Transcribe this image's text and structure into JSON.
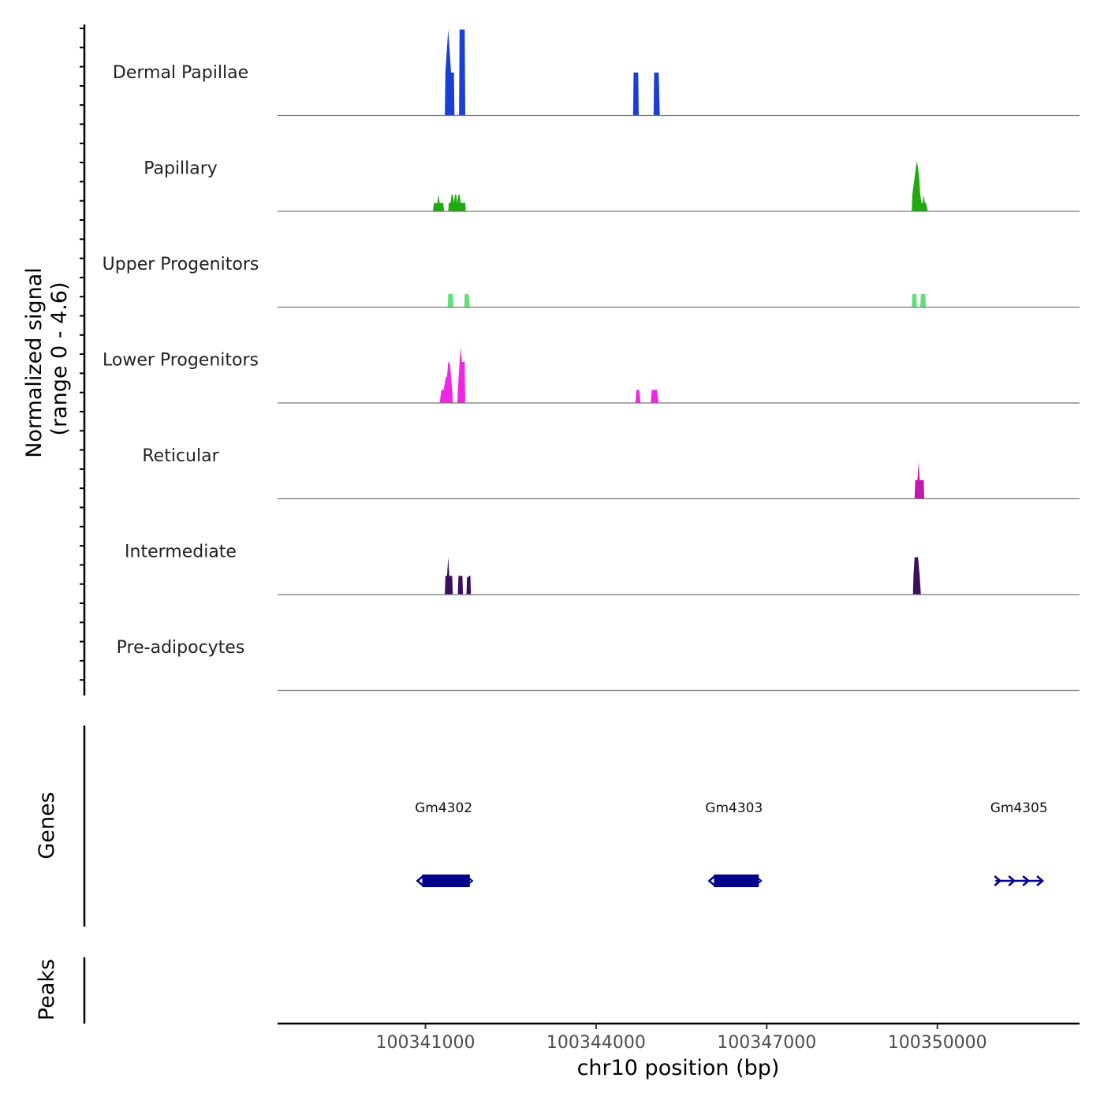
{
  "chart_data": {
    "type": "area",
    "title": "",
    "chromosome": "chr10",
    "xlabel": "chr10 position (bp)",
    "ylabel": "Normalized signal",
    "ylabel_range": "(range 0 - 4.6)",
    "signal_range": [
      0,
      4.6
    ],
    "xlim": [
      100338400,
      100352500
    ],
    "x_ticks": [
      100341000,
      100344000,
      100347000,
      100350000
    ],
    "x_tick_labels": [
      "100341000",
      "100344000",
      "100347000",
      "100350000"
    ],
    "tracks": [
      {
        "name": "Dermal Papillae",
        "color": "#1a3fd6",
        "peaks": [
          {
            "x": [
              100341340,
              100341350,
              100341400,
              100341450,
              100341500,
              100341510
            ],
            "y": [
              0,
              2.3,
              4.6,
              2.3,
              2.3,
              0
            ]
          },
          {
            "x": [
              100341590,
              100341600,
              100341690,
              100341700
            ],
            "y": [
              0,
              4.6,
              4.6,
              0
            ]
          },
          {
            "x": [
              100344650,
              100344660,
              100344740,
              100344750
            ],
            "y": [
              0,
              2.3,
              2.3,
              0
            ]
          },
          {
            "x": [
              100345010,
              100345020,
              100345100,
              100345120
            ],
            "y": [
              0,
              2.3,
              2.3,
              0
            ]
          }
        ]
      },
      {
        "name": "Papillary",
        "color": "#1fab10",
        "peaks": [
          {
            "x": [
              100341130,
              100341150,
              100341210,
              100341230,
              100341250,
              100341310,
              100341330
            ],
            "y": [
              0,
              0.45,
              0.45,
              0.9,
              0.45,
              0.45,
              0
            ]
          },
          {
            "x": [
              100341400,
              100341410,
              100341440,
              100341460,
              100341480,
              100341500,
              100341520,
              100341540,
              100341560,
              100341580,
              100341600,
              100341620,
              100341650,
              100341700,
              100341710
            ],
            "y": [
              0,
              0.45,
              0.45,
              0.9,
              0.9,
              0.45,
              0.9,
              0.9,
              0.45,
              0.9,
              0.9,
              0.45,
              0.45,
              0.45,
              0
            ]
          },
          {
            "x": [
              100349550,
              100349560,
              100349600,
              100349620,
              100349640,
              100349660,
              100349680,
              100349700,
              100349720,
              100349740,
              100349760,
              100349780,
              100349800,
              100349830
            ],
            "y": [
              0,
              0.9,
              1.8,
              2.3,
              2.7,
              2.3,
              1.8,
              0.9,
              0.45,
              0.45,
              0.9,
              0.45,
              0.45,
              0
            ]
          }
        ]
      },
      {
        "name": "Upper Progenitors",
        "color": "#5fe07a",
        "peaks": [
          {
            "x": [
              100341390,
              100341400,
              100341480,
              100341490
            ],
            "y": [
              0,
              0.7,
              0.7,
              0
            ]
          },
          {
            "x": [
              100341680,
              100341690,
              100341760,
              100341780
            ],
            "y": [
              0,
              0.7,
              0.7,
              0
            ]
          },
          {
            "x": [
              100349550,
              100349560,
              100349630,
              100349640
            ],
            "y": [
              0,
              0.7,
              0.7,
              0
            ]
          },
          {
            "x": [
              100349700,
              100349710,
              100349790,
              100349800
            ],
            "y": [
              0,
              0.7,
              0.7,
              0
            ]
          }
        ]
      },
      {
        "name": "Lower Progenitors",
        "color": "#f026e6",
        "peaks": [
          {
            "x": [
              100341250,
              100341280,
              100341320,
              100341360,
              100341380,
              100341400,
              100341430,
              100341450,
              100341470,
              100341480
            ],
            "y": [
              0,
              0.7,
              0.7,
              1.4,
              1.4,
              2.2,
              2.1,
              1.4,
              0.7,
              0
            ]
          },
          {
            "x": [
              100341560,
              100341570,
              100341600,
              100341620,
              100341640,
              100341660,
              100341690,
              100341700
            ],
            "y": [
              0,
              0.7,
              2.2,
              3.0,
              2.2,
              2.2,
              2.2,
              0
            ]
          },
          {
            "x": [
              100344690,
              100344710,
              100344760,
              100344780
            ],
            "y": [
              0,
              0.7,
              0.7,
              0
            ]
          },
          {
            "x": [
              100344960,
              100344980,
              100345070,
              100345100
            ],
            "y": [
              0,
              0.7,
              0.7,
              0
            ]
          }
        ]
      },
      {
        "name": "Reticular",
        "color": "#c218b2",
        "peaks": [
          {
            "x": [
              100349600,
              100349610,
              100349650,
              100349670,
              100349690,
              100349720,
              100349760,
              100349770
            ],
            "y": [
              0,
              1.0,
              1.0,
              2.0,
              1.0,
              1.0,
              1.0,
              0
            ]
          }
        ]
      },
      {
        "name": "Intermediate",
        "color": "#3b0f5e",
        "peaks": [
          {
            "x": [
              100341340,
              100341350,
              100341380,
              100341400,
              100341420,
              100341470,
              100341480
            ],
            "y": [
              0,
              1.0,
              1.0,
              2.0,
              1.0,
              1.0,
              0
            ]
          },
          {
            "x": [
              100341570,
              100341580,
              100341650,
              100341660
            ],
            "y": [
              0,
              1.0,
              1.0,
              0
            ]
          },
          {
            "x": [
              100341720,
              100341730,
              100341770,
              100341790,
              100341800
            ],
            "y": [
              0,
              0.9,
              1.0,
              1.0,
              0
            ]
          },
          {
            "x": [
              100349570,
              100349580,
              100349600,
              100349620,
              100349660,
              100349690,
              100349710
            ],
            "y": [
              0,
              1.0,
              2.0,
              2.0,
              2.0,
              1.0,
              0
            ]
          }
        ]
      },
      {
        "name": "Pre-adipocytes",
        "color": "#ea5a2b",
        "peaks": []
      }
    ],
    "genes_track": {
      "label": "Genes",
      "color": "#00008b",
      "genes": [
        {
          "name": "Gm4302",
          "start": 100340860,
          "end": 100341780,
          "strand": "-"
        },
        {
          "name": "Gm4303",
          "start": 100345990,
          "end": 100346860,
          "strand": "-"
        },
        {
          "name": "Gm4305",
          "start": 100351020,
          "end": 100351850,
          "strand": "+"
        }
      ]
    },
    "peaks_track": {
      "label": "Peaks",
      "regions": []
    }
  }
}
